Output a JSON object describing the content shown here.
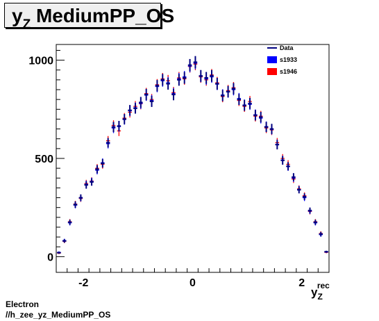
{
  "header": {
    "title_main": "y",
    "title_sub": "Z",
    "title_rest": " MediumPP_OS"
  },
  "footer": {
    "line1": "Electron",
    "line2": "//h_zee_yz_MediumPP_OS"
  },
  "chart_data": {
    "type": "scatter",
    "title": "y_Z MediumPP_OS",
    "xlabel": "y_Z^rec",
    "xlabel_main": "y",
    "xlabel_sub": "Z",
    "xlabel_sup": "rec",
    "xlim": [
      -2.5,
      2.5
    ],
    "ylim": [
      -80,
      1080
    ],
    "xticks": [
      -2,
      0,
      2
    ],
    "xtick_labels": [
      "-2",
      "0",
      "2"
    ],
    "yticks": [
      0,
      500,
      1000
    ],
    "ytick_labels": [
      "0",
      "500",
      "1000"
    ],
    "grid": false,
    "legend_position": "top-right",
    "bin_width": 0.1,
    "x": [
      -2.45,
      -2.35,
      -2.25,
      -2.15,
      -2.05,
      -1.95,
      -1.85,
      -1.75,
      -1.65,
      -1.55,
      -1.45,
      -1.35,
      -1.25,
      -1.15,
      -1.05,
      -0.95,
      -0.85,
      -0.75,
      -0.65,
      -0.55,
      -0.45,
      -0.35,
      -0.25,
      -0.15,
      -0.05,
      0.05,
      0.15,
      0.25,
      0.35,
      0.45,
      0.55,
      0.65,
      0.75,
      0.85,
      0.95,
      1.05,
      1.15,
      1.25,
      1.35,
      1.45,
      1.55,
      1.65,
      1.75,
      1.85,
      1.95,
      2.05,
      2.15,
      2.25,
      2.35,
      2.45
    ],
    "series": [
      {
        "name": "Data",
        "color": "#000080",
        "values": [
          20,
          80,
          175,
          265,
          300,
          365,
          380,
          445,
          475,
          580,
          660,
          665,
          700,
          745,
          755,
          785,
          825,
          790,
          870,
          900,
          880,
          825,
          900,
          910,
          975,
          990,
          920,
          910,
          920,
          880,
          820,
          840,
          855,
          800,
          770,
          780,
          720,
          710,
          660,
          650,
          570,
          490,
          460,
          405,
          340,
          305,
          235,
          175,
          115,
          25
        ],
        "errors": [
          5,
          9,
          13,
          16,
          17,
          19,
          19,
          21,
          22,
          24,
          26,
          26,
          26,
          27,
          27,
          28,
          29,
          28,
          29,
          30,
          30,
          29,
          30,
          30,
          31,
          31,
          30,
          30,
          30,
          30,
          29,
          29,
          29,
          28,
          28,
          28,
          27,
          27,
          26,
          26,
          24,
          22,
          21,
          20,
          18,
          17,
          15,
          13,
          11,
          5
        ]
      },
      {
        "name": "s1933",
        "color": "#0000ff",
        "values": [
          22,
          82,
          172,
          262,
          298,
          368,
          383,
          440,
          478,
          575,
          655,
          662,
          698,
          742,
          758,
          780,
          822,
          795,
          866,
          895,
          885,
          830,
          905,
          915,
          970,
          985,
          918,
          905,
          915,
          878,
          823,
          838,
          850,
          805,
          772,
          775,
          722,
          705,
          662,
          648,
          572,
          492,
          458,
          400,
          342,
          300,
          232,
          172,
          112,
          24
        ]
      },
      {
        "name": "s1946",
        "color": "#ff0000",
        "values": [
          18,
          78,
          178,
          268,
          296,
          372,
          385,
          450,
          470,
          590,
          668,
          640,
          705,
          735,
          765,
          778,
          830,
          800,
          875,
          905,
          895,
          835,
          910,
          905,
          968,
          980,
          915,
          900,
          925,
          885,
          815,
          845,
          860,
          795,
          765,
          790,
          715,
          715,
          655,
          645,
          580,
          500,
          470,
          395,
          345,
          310,
          230,
          178,
          118,
          22
        ]
      }
    ]
  }
}
